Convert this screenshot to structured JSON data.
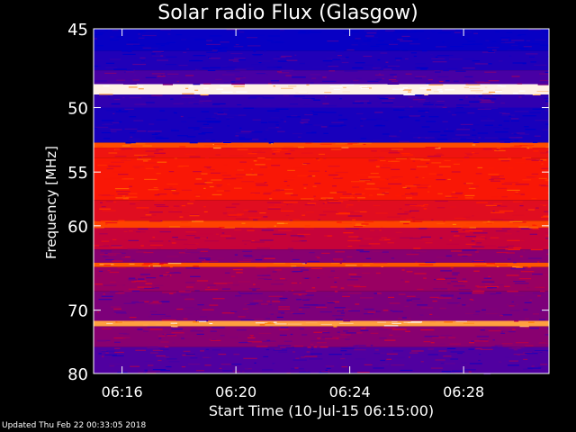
{
  "footer": {
    "updated": "Updated Thu Feb 22 00:33:05 2018"
  },
  "chart_data": {
    "type": "heatmap",
    "title": "Solar radio Flux (Glasgow)",
    "xlabel": "Start Time (10-Jul-15 06:15:00)",
    "ylabel": "Frequency [MHz]",
    "x_range": [
      "06:15:00",
      "06:31:00"
    ],
    "x_ticks": [
      "06:16",
      "06:20",
      "06:24",
      "06:28"
    ],
    "ylim": [
      45,
      80
    ],
    "y_ticks": [
      45,
      50,
      55,
      60,
      70,
      80
    ],
    "y_scale": "reciprocal",
    "colormap": [
      "#0000c8",
      "#5000a0",
      "#c00040",
      "#ff1a00",
      "#ff8000",
      "#ffffff"
    ],
    "bands": [
      {
        "f1": 45.0,
        "f2": 46.3,
        "level": 0.02
      },
      {
        "f1": 46.3,
        "f2": 47.5,
        "level": 0.08
      },
      {
        "f1": 47.5,
        "f2": 48.4,
        "level": 0.18
      },
      {
        "f1": 48.4,
        "f2": 49.1,
        "level": 0.98
      },
      {
        "f1": 49.1,
        "f2": 50.0,
        "level": 0.12
      },
      {
        "f1": 50.0,
        "f2": 52.6,
        "level": 0.06
      },
      {
        "f1": 52.6,
        "f2": 53.0,
        "level": 0.7
      },
      {
        "f1": 53.0,
        "f2": 53.8,
        "level": 0.55
      },
      {
        "f1": 53.8,
        "f2": 57.5,
        "level": 0.58
      },
      {
        "f1": 57.5,
        "f2": 59.5,
        "level": 0.5
      },
      {
        "f1": 59.5,
        "f2": 60.2,
        "level": 0.68
      },
      {
        "f1": 60.2,
        "f2": 62.5,
        "level": 0.42
      },
      {
        "f1": 62.5,
        "f2": 64.0,
        "level": 0.3
      },
      {
        "f1": 64.0,
        "f2": 64.5,
        "level": 0.72
      },
      {
        "f1": 64.5,
        "f2": 67.5,
        "level": 0.33
      },
      {
        "f1": 67.5,
        "f2": 71.5,
        "level": 0.28
      },
      {
        "f1": 71.5,
        "f2": 72.3,
        "level": 0.85
      },
      {
        "f1": 72.3,
        "f2": 75.5,
        "level": 0.3
      },
      {
        "f1": 75.5,
        "f2": 80.0,
        "level": 0.2
      }
    ]
  }
}
